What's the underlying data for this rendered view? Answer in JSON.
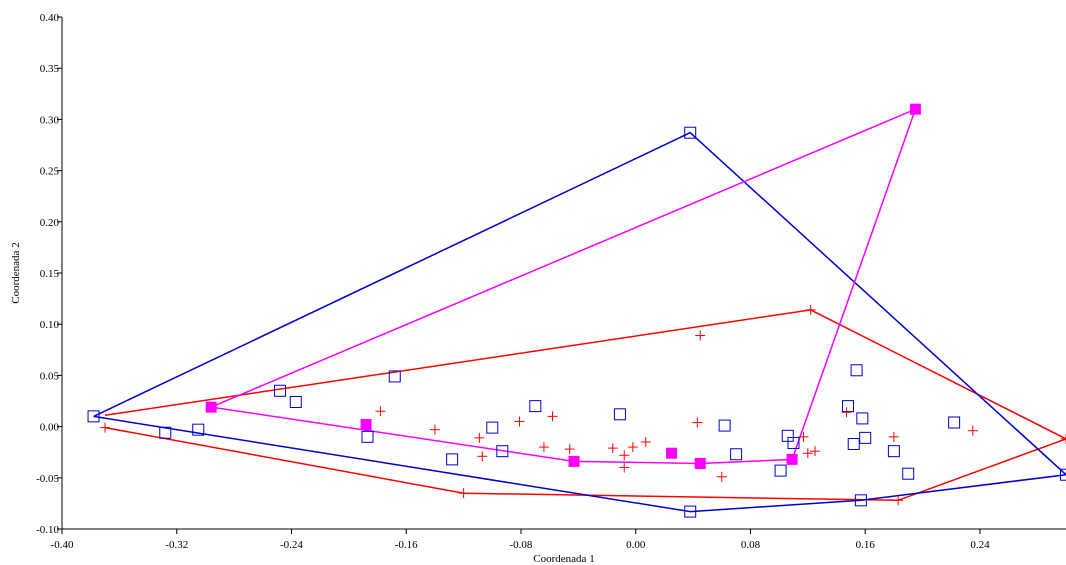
{
  "chart_data": {
    "type": "scatter",
    "title": "",
    "xlabel": "Coordenada 1",
    "ylabel": "Coordenada 2",
    "xlim": [
      -0.4,
      0.3
    ],
    "ylim": [
      -0.1,
      0.4
    ],
    "x_ticks": [
      -0.4,
      -0.32,
      -0.24,
      -0.16,
      -0.08,
      0.0,
      0.08,
      0.16,
      0.24
    ],
    "x_tick_labels": [
      "-0.40",
      "-0.32",
      "-0.24",
      "-0.16",
      "-0.08",
      "0.00",
      "0.08",
      "0.16",
      "0.24"
    ],
    "y_ticks": [
      -0.1,
      -0.05,
      0.0,
      0.05,
      0.1,
      0.15,
      0.2,
      0.25,
      0.3,
      0.35,
      0.4
    ],
    "y_tick_labels": [
      "-0.10",
      "-0.05",
      "0.00",
      "0.05",
      "0.10",
      "0.15",
      "0.20",
      "0.25",
      "0.30",
      "0.35",
      "0.40"
    ],
    "grid": false,
    "legend": "none",
    "series": [
      {
        "marker": "cross",
        "color": "#ff0000",
        "points": [
          [
            -0.37,
            -0.001
          ],
          [
            -0.178,
            0.015
          ],
          [
            -0.14,
            -0.003
          ],
          [
            -0.12,
            -0.065
          ],
          [
            -0.109,
            -0.011
          ],
          [
            -0.107,
            -0.029
          ],
          [
            -0.081,
            0.005
          ],
          [
            -0.064,
            -0.02
          ],
          [
            -0.058,
            0.01
          ],
          [
            -0.046,
            -0.022
          ],
          [
            -0.016,
            -0.021
          ],
          [
            -0.008,
            -0.028
          ],
          [
            -0.008,
            -0.04
          ],
          [
            -0.002,
            -0.02
          ],
          [
            0.007,
            -0.015
          ],
          [
            0.045,
            0.089
          ],
          [
            0.043,
            0.004
          ],
          [
            0.06,
            -0.049
          ],
          [
            0.117,
            -0.01
          ],
          [
            0.12,
            -0.026
          ],
          [
            0.125,
            -0.024
          ],
          [
            0.122,
            0.114
          ],
          [
            0.147,
            0.014
          ],
          [
            0.18,
            -0.01
          ],
          [
            0.183,
            -0.072
          ],
          [
            0.235,
            -0.004
          ],
          [
            0.3,
            -0.012
          ]
        ],
        "hull": [
          [
            -0.37,
            0.011
          ],
          [
            0.122,
            0.114
          ],
          [
            0.3,
            -0.012
          ],
          [
            0.183,
            -0.072
          ],
          [
            -0.12,
            -0.065
          ],
          [
            -0.37,
            -0.001
          ]
        ]
      },
      {
        "marker": "open-square",
        "color": "#0000cc",
        "points": [
          [
            -0.378,
            0.01
          ],
          [
            -0.328,
            -0.006
          ],
          [
            -0.305,
            -0.003
          ],
          [
            -0.248,
            0.035
          ],
          [
            -0.237,
            0.024
          ],
          [
            -0.187,
            -0.01
          ],
          [
            -0.168,
            0.049
          ],
          [
            -0.128,
            -0.032
          ],
          [
            -0.1,
            -0.001
          ],
          [
            -0.093,
            -0.024
          ],
          [
            -0.07,
            0.02
          ],
          [
            -0.011,
            0.012
          ],
          [
            0.038,
            0.287
          ],
          [
            0.038,
            -0.083
          ],
          [
            0.062,
            0.001
          ],
          [
            0.07,
            -0.027
          ],
          [
            0.101,
            -0.043
          ],
          [
            0.106,
            -0.009
          ],
          [
            0.11,
            -0.016
          ],
          [
            0.148,
            0.02
          ],
          [
            0.152,
            -0.017
          ],
          [
            0.154,
            0.055
          ],
          [
            0.157,
            -0.072
          ],
          [
            0.158,
            0.008
          ],
          [
            0.16,
            -0.011
          ],
          [
            0.18,
            -0.024
          ],
          [
            0.19,
            -0.046
          ],
          [
            0.222,
            0.004
          ],
          [
            0.3,
            -0.047
          ]
        ],
        "hull": [
          [
            -0.378,
            0.01
          ],
          [
            0.038,
            0.287
          ],
          [
            0.3,
            -0.047
          ],
          [
            0.157,
            -0.072
          ],
          [
            0.038,
            -0.083
          ],
          [
            -0.378,
            0.01
          ]
        ]
      },
      {
        "marker": "filled-square",
        "color": "#ff00ff",
        "points": [
          [
            -0.296,
            0.019
          ],
          [
            -0.188,
            0.002
          ],
          [
            -0.043,
            -0.034
          ],
          [
            0.025,
            -0.026
          ],
          [
            0.045,
            -0.036
          ],
          [
            0.109,
            -0.032
          ],
          [
            0.195,
            0.31
          ]
        ],
        "hull": [
          [
            -0.296,
            0.019
          ],
          [
            0.195,
            0.31
          ],
          [
            0.109,
            -0.032
          ],
          [
            0.045,
            -0.036
          ],
          [
            -0.043,
            -0.034
          ],
          [
            -0.296,
            0.019
          ]
        ]
      }
    ]
  }
}
